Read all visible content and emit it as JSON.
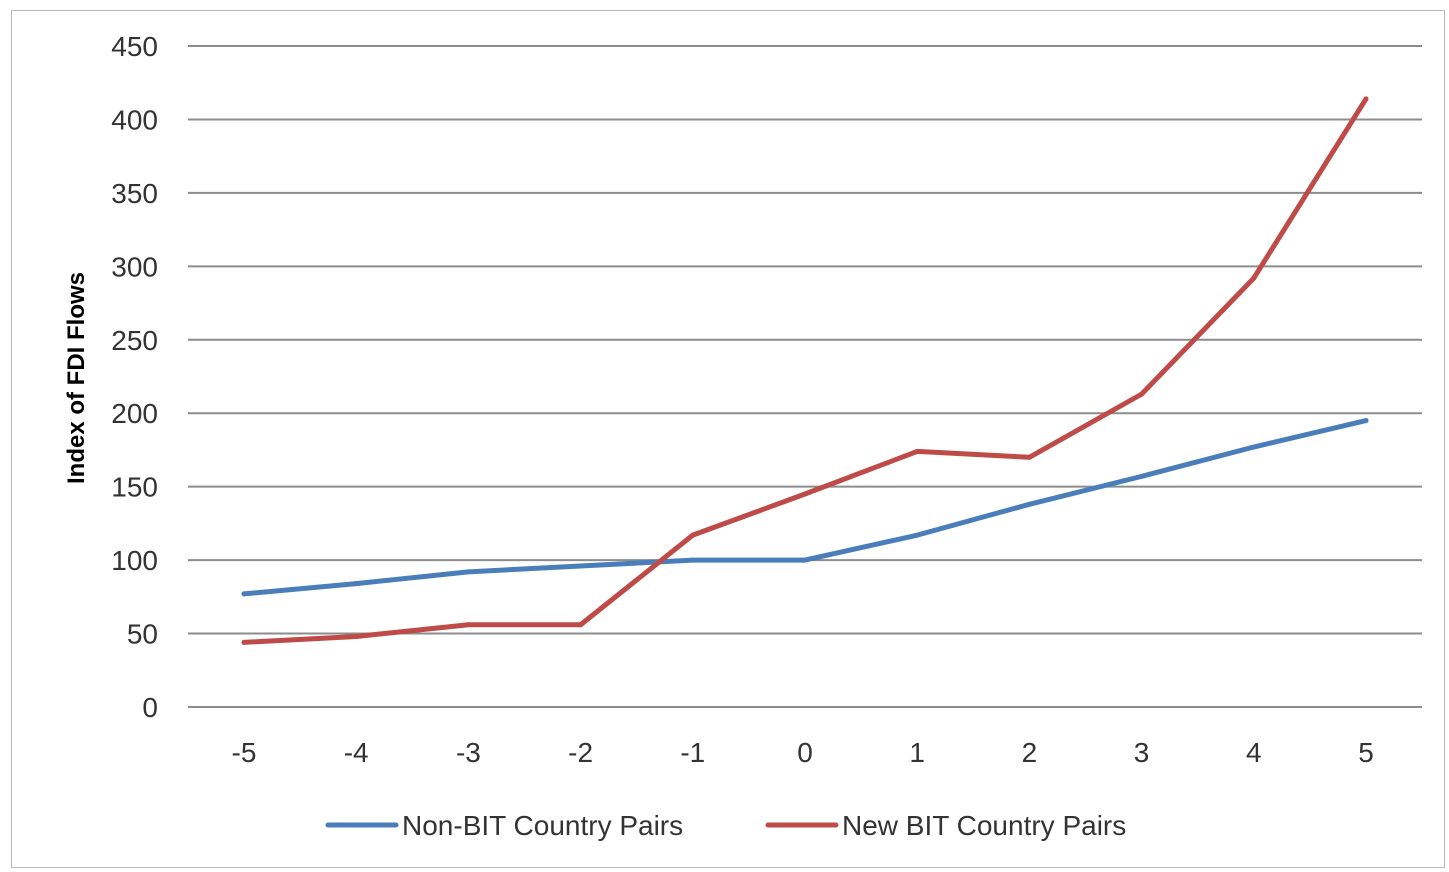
{
  "chart_data": {
    "type": "line",
    "title": "",
    "xlabel": "",
    "ylabel": "Index of FDI Flows",
    "x": [
      -5,
      -4,
      -3,
      -2,
      -1,
      0,
      1,
      2,
      3,
      4,
      5
    ],
    "x_tick_labels": [
      "-5",
      "-4",
      "-3",
      "-2",
      "-1",
      "0",
      "1",
      "2",
      "3",
      "4",
      "5"
    ],
    "ylim": [
      0,
      450
    ],
    "y_ticks": [
      0,
      50,
      100,
      150,
      200,
      250,
      300,
      350,
      400,
      450
    ],
    "grid": "horizontal",
    "legend_position": "bottom",
    "series": [
      {
        "name": "Non-BIT Country Pairs",
        "color": "#4a7ebb",
        "values": [
          77,
          84,
          92,
          96,
          100,
          100,
          117,
          138,
          157,
          177,
          195
        ]
      },
      {
        "name": "New BIT Country Pairs",
        "color": "#be4b48",
        "values": [
          44,
          48,
          56,
          56,
          117,
          145,
          174,
          170,
          213,
          292,
          414
        ]
      }
    ]
  }
}
